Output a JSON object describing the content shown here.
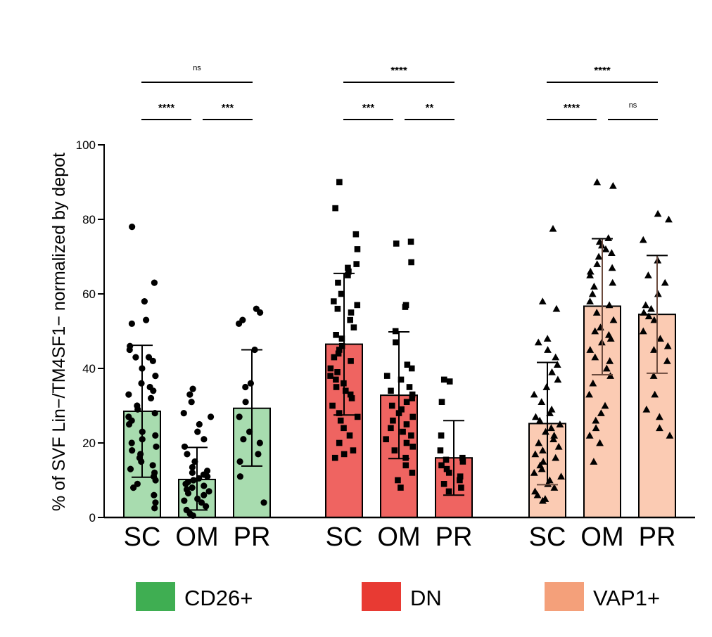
{
  "chart_data": {
    "type": "bar",
    "ylabel": "% of SVF Lin−/TM4SF1− normalized by depot",
    "ylim": [
      0,
      100
    ],
    "yticks": [
      "0",
      "20",
      "40",
      "60",
      "80",
      "100"
    ],
    "groups": [
      {
        "name": "CD26+",
        "color": "#a8dcaf",
        "legend_color": "#3fae52",
        "marker": "circle",
        "bars": [
          {
            "category": "SC",
            "mean": 28.5,
            "sd_low": 10.8,
            "sd_high": 46.2,
            "points": [
              78,
              63,
              58,
              53,
              52,
              46,
              45,
              43,
              43,
              42,
              40,
              38,
              36,
              35,
              34,
              33,
              32,
              30,
              29,
              28,
              27,
              26,
              25,
              23,
              22,
              21,
              20,
              19,
              18,
              17,
              16,
              15,
              14,
              13,
              12,
              11,
              10,
              9,
              8,
              6,
              4,
              2.5
            ]
          },
          {
            "category": "OM",
            "mean": 10.2,
            "sd_low": 2,
            "sd_high": 18.8,
            "points": [
              34.5,
              33,
              31,
              28,
              27,
              25,
              23,
              21,
              19,
              17,
              15,
              13.5,
              12.5,
              12,
              11.5,
              11,
              10.5,
              10,
              9.5,
              9,
              8.5,
              8,
              7.5,
              7,
              6.5,
              6,
              5,
              4.5,
              4,
              3,
              2,
              1,
              0.5
            ]
          },
          {
            "category": "PR",
            "mean": 29.3,
            "sd_low": 13.8,
            "sd_high": 45,
            "points": [
              56,
              55,
              53,
              52,
              45,
              36,
              35,
              31,
              27,
              23,
              21,
              20,
              17,
              15,
              11,
              4
            ]
          }
        ],
        "significance": {
          "left": "****",
          "right": "***",
          "span": "ns"
        }
      },
      {
        "name": "DN",
        "color": "#ef6461",
        "legend_color": "#e83a33",
        "marker": "square",
        "bars": [
          {
            "category": "SC",
            "mean": 46.5,
            "sd_low": 27.5,
            "sd_high": 65.5,
            "points": [
              90,
              83,
              76,
              72,
              68,
              67,
              66,
              65,
              63,
              60,
              58,
              57,
              56,
              55,
              53,
              51,
              49,
              48,
              46,
              45,
              44,
              43,
              42,
              40,
              39,
              38,
              37,
              36,
              35,
              34,
              33,
              32,
              30,
              28,
              27,
              26,
              24,
              22,
              20,
              18,
              17,
              16
            ]
          },
          {
            "category": "OM",
            "mean": 32.8,
            "sd_low": 15.8,
            "sd_high": 49.8,
            "points": [
              74,
              73.5,
              68.5,
              57,
              56.5,
              50,
              47,
              41,
              40,
              38,
              37,
              35,
              34,
              33,
              32,
              31,
              30,
              29,
              28,
              27,
              26,
              25,
              24,
              23,
              22,
              21,
              20,
              19,
              18,
              16,
              14,
              12,
              10,
              8
            ]
          },
          {
            "category": "PR",
            "mean": 16,
            "sd_low": 6,
            "sd_high": 26,
            "points": [
              37,
              36.5,
              31,
              22,
              18,
              16,
              15.5,
              15,
              14,
              13,
              12,
              11,
              10,
              9,
              8,
              7
            ]
          }
        ],
        "significance": {
          "left": "***",
          "right": "**",
          "span": "****"
        }
      },
      {
        "name": "VAP1+",
        "color": "#fbcbb3",
        "legend_color": "#f4a07a",
        "marker": "triangle",
        "bars": [
          {
            "category": "SC",
            "mean": 25.2,
            "sd_low": 8.8,
            "sd_high": 41.6,
            "points": [
              77.5,
              58,
              56,
              48,
              47,
              45,
              43,
              41,
              39,
              37,
              35,
              33,
              31,
              29,
              28,
              27,
              26,
              25,
              24,
              23,
              22,
              21,
              20,
              19,
              18,
              17,
              16,
              15,
              14,
              13,
              12,
              11,
              10,
              9,
              8,
              7,
              6,
              5,
              4.5
            ]
          },
          {
            "category": "OM",
            "mean": 56.7,
            "sd_low": 38.3,
            "sd_high": 74.8,
            "points": [
              90,
              89,
              75,
              74,
              73,
              72,
              71,
              70,
              68,
              67,
              66,
              65,
              63,
              62,
              60,
              58,
              57,
              55,
              53,
              51,
              50,
              49,
              48,
              47,
              45,
              43,
              42,
              40,
              38,
              36,
              33,
              30,
              28,
              26,
              24,
              22,
              20,
              15
            ]
          },
          {
            "category": "PR",
            "mean": 54.5,
            "sd_low": 38.7,
            "sd_high": 70.3,
            "points": [
              81.5,
              80,
              74.5,
              69,
              65,
              63,
              60,
              57,
              56,
              55,
              54,
              53,
              50,
              48,
              46,
              45,
              42,
              38,
              33,
              29,
              27,
              24,
              22
            ]
          }
        ],
        "significance": {
          "left": "****",
          "right": "ns",
          "span": "****"
        }
      }
    ]
  },
  "legend": [
    {
      "label": "CD26+",
      "color": "#3fae52"
    },
    {
      "label": "DN",
      "color": "#e83a33"
    },
    {
      "label": "VAP1+",
      "color": "#f4a07a"
    }
  ]
}
